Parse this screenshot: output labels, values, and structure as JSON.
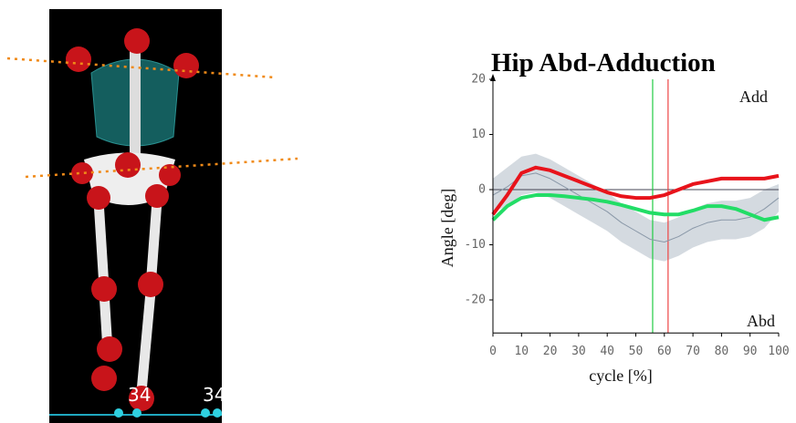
{
  "viewer": {
    "marker_labels": [
      "34",
      "34"
    ]
  },
  "chart_data": {
    "type": "line",
    "title": "Hip Abd-Adduction",
    "x_label": "cycle [%]",
    "y_label": "Angle [deg]",
    "annotations": [
      "Add",
      "Abd"
    ],
    "x": [
      0,
      5,
      10,
      15,
      20,
      25,
      30,
      35,
      40,
      45,
      50,
      55,
      60,
      65,
      70,
      75,
      80,
      85,
      90,
      95,
      100
    ],
    "series": [
      {
        "color": "#e8131b",
        "values": [
          -4.5,
          -1,
          3,
          4,
          3.5,
          2.5,
          1.5,
          0.5,
          -0.5,
          -1.2,
          -1.5,
          -1.5,
          -1,
          0,
          1,
          1.5,
          2,
          2,
          2,
          2,
          2.5
        ]
      },
      {
        "color": "#22dd66",
        "values": [
          -5.5,
          -3,
          -1.5,
          -1,
          -1,
          -1.2,
          -1.5,
          -1.8,
          -2.2,
          -2.8,
          -3.5,
          -4.2,
          -4.5,
          -4.5,
          -3.8,
          -3,
          -3,
          -3.5,
          -4.5,
          -5.5,
          -5
        ]
      },
      {
        "color": "#8a98a8",
        "values": [
          -1,
          0.5,
          2.5,
          3,
          2,
          0.5,
          -1,
          -2.5,
          -4,
          -6,
          -7.5,
          -9,
          -9.5,
          -8.5,
          -7,
          -6,
          -5.5,
          -5.5,
          -5,
          -3.5,
          -1.5
        ]
      }
    ],
    "band": {
      "color": "#cdd3da",
      "upper": [
        2,
        4,
        6,
        6.5,
        5.5,
        4,
        2.5,
        1,
        -0.5,
        -2.5,
        -4,
        -5.5,
        -6,
        -5,
        -3.5,
        -2.5,
        -2,
        -2,
        -1.5,
        0,
        1
      ],
      "lower": [
        -4,
        -3,
        -1,
        -0.5,
        -1.5,
        -3,
        -4.5,
        -6,
        -7.5,
        -9.5,
        -11,
        -12.5,
        -13,
        -12,
        -10.5,
        -9.5,
        -9,
        -9,
        -8.5,
        -7,
        -4
      ]
    },
    "vlines": [
      {
        "value": 55.9,
        "color": "#22cc44"
      },
      {
        "value": 61.3,
        "color": "#ee4444"
      }
    ],
    "reference_y": 0,
    "xlim": [
      0,
      100
    ],
    "xticks": [
      0,
      10,
      20,
      30,
      40,
      50,
      60,
      70,
      80,
      90,
      100
    ],
    "ylim": [
      -26,
      20
    ],
    "yticks": [
      -20,
      -10,
      0,
      10,
      20
    ]
  }
}
